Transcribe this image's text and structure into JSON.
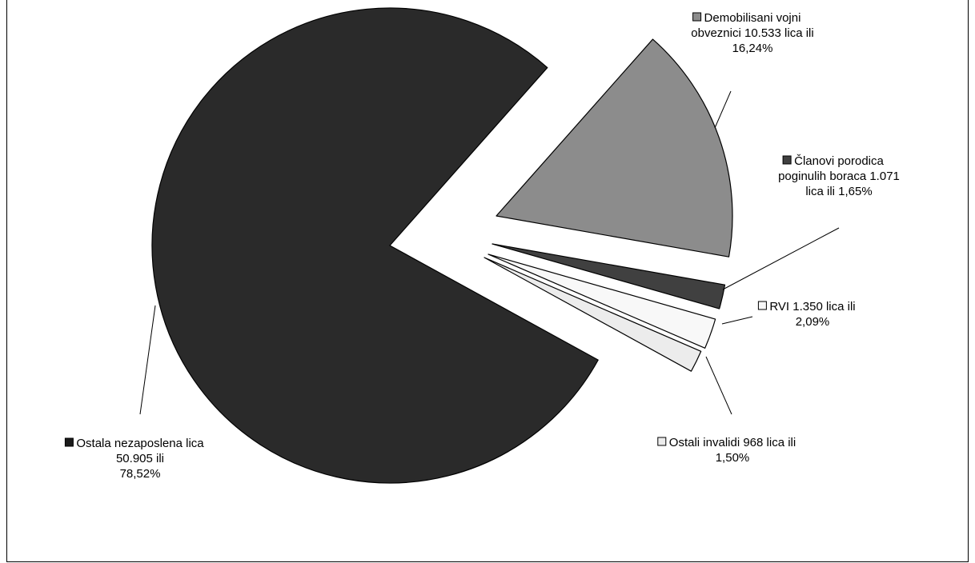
{
  "chart_data": {
    "type": "pie",
    "title": "",
    "slices": [
      {
        "name": "Demobilisani vojni obveznici",
        "value": 10533,
        "percent": 16.24,
        "color": "#8c8c8c",
        "label_lines": [
          "Demobilisani vojni",
          "obveznici 10.533 lica ili",
          "16,24%"
        ]
      },
      {
        "name": "Članovi porodica poginulih boraca",
        "value": 1071,
        "percent": 1.65,
        "color": "#404040",
        "label_lines": [
          "Članovi porodica",
          "poginulih boraca 1.071",
          "lica ili 1,65%"
        ]
      },
      {
        "name": "RVI",
        "value": 1350,
        "percent": 2.09,
        "color": "#f8f8f8",
        "label_lines": [
          "RVI 1.350 lica ili",
          "2,09%"
        ]
      },
      {
        "name": "Ostali invalidi",
        "value": 968,
        "percent": 1.5,
        "color": "#ececec",
        "label_lines": [
          "Ostali invalidi 968 lica ili",
          "1,50%"
        ]
      },
      {
        "name": "Ostala nezaposlena lica",
        "value": 50905,
        "percent": 78.52,
        "color": "#2a2a2a",
        "label_lines": [
          "Ostala nezaposlena lica",
          "50.905  ili",
          "78,52%"
        ]
      }
    ],
    "start_angle_deg": -48.5,
    "direction": "clockwise",
    "exploded": true
  }
}
